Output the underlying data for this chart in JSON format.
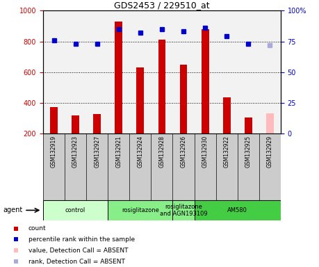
{
  "title": "GDS2453 / 229510_at",
  "samples": [
    "GSM132919",
    "GSM132923",
    "GSM132927",
    "GSM132921",
    "GSM132924",
    "GSM132928",
    "GSM132926",
    "GSM132930",
    "GSM132922",
    "GSM132925",
    "GSM132929"
  ],
  "counts": [
    370,
    320,
    325,
    930,
    630,
    810,
    650,
    880,
    435,
    305,
    330
  ],
  "percentile_ranks": [
    76,
    73,
    73,
    85,
    82,
    85,
    83,
    86,
    79,
    73,
    72
  ],
  "absent_mask": [
    false,
    false,
    false,
    false,
    false,
    false,
    false,
    false,
    false,
    false,
    true
  ],
  "bar_color_present": "#cc0000",
  "bar_color_absent": "#ffbbbb",
  "dot_color_present": "#0000cc",
  "dot_color_absent": "#aaaadd",
  "ylim_left": [
    200,
    1000
  ],
  "ylim_right": [
    0,
    100
  ],
  "yticks_left": [
    200,
    400,
    600,
    800,
    1000
  ],
  "yticks_right": [
    0,
    25,
    50,
    75,
    100
  ],
  "yticklabels_right": [
    "0",
    "25",
    "50",
    "75",
    "100%"
  ],
  "grid_lines": [
    400,
    600,
    800
  ],
  "groups": [
    {
      "label": "control",
      "start": 0,
      "end": 3,
      "color": "#ccffcc"
    },
    {
      "label": "rosiglitazone",
      "start": 3,
      "end": 6,
      "color": "#88ee88"
    },
    {
      "label": "rosiglitazone\nand AGN193109",
      "start": 6,
      "end": 7,
      "color": "#88ee88"
    },
    {
      "label": "AM580",
      "start": 7,
      "end": 11,
      "color": "#44cc44"
    }
  ],
  "legend_items": [
    {
      "color": "#cc0000",
      "label": "count"
    },
    {
      "color": "#0000cc",
      "label": "percentile rank within the sample"
    },
    {
      "color": "#ffbbbb",
      "label": "value, Detection Call = ABSENT"
    },
    {
      "color": "#aaaadd",
      "label": "rank, Detection Call = ABSENT"
    }
  ],
  "agent_label": "agent",
  "background_color": "#ffffff",
  "plot_bg_color": "#f2f2f2",
  "sample_bg_color": "#cccccc",
  "bar_width": 0.35
}
